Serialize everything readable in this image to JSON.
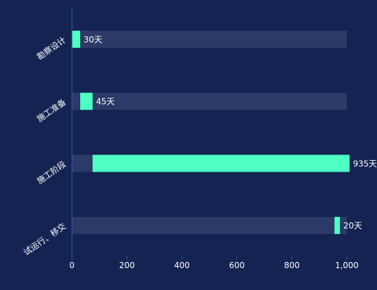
{
  "colors": {
    "background": "#142452",
    "track": "#2b3a66",
    "bar": "#4dffc3",
    "axis": "#2f5fb3",
    "text": "#ffffff"
  },
  "chart_data": {
    "type": "bar",
    "orientation": "horizontal",
    "stacked": true,
    "categories": [
      "勘察设计",
      "施工准备",
      "施工阶段",
      "试运行、移交"
    ],
    "series": [
      {
        "values": [
          30,
          45,
          935,
          20
        ],
        "data_labels": [
          "30天",
          "45天",
          "935天",
          "20天"
        ]
      }
    ],
    "offsets": [
      0,
      30,
      75,
      955
    ],
    "xlim": [
      0,
      1000
    ],
    "xticks": [
      0,
      200,
      400,
      600,
      800,
      1000
    ],
    "xtick_labels": [
      "0",
      "200",
      "400",
      "600",
      "800",
      "1,000"
    ],
    "grid": false,
    "legend": "none"
  }
}
